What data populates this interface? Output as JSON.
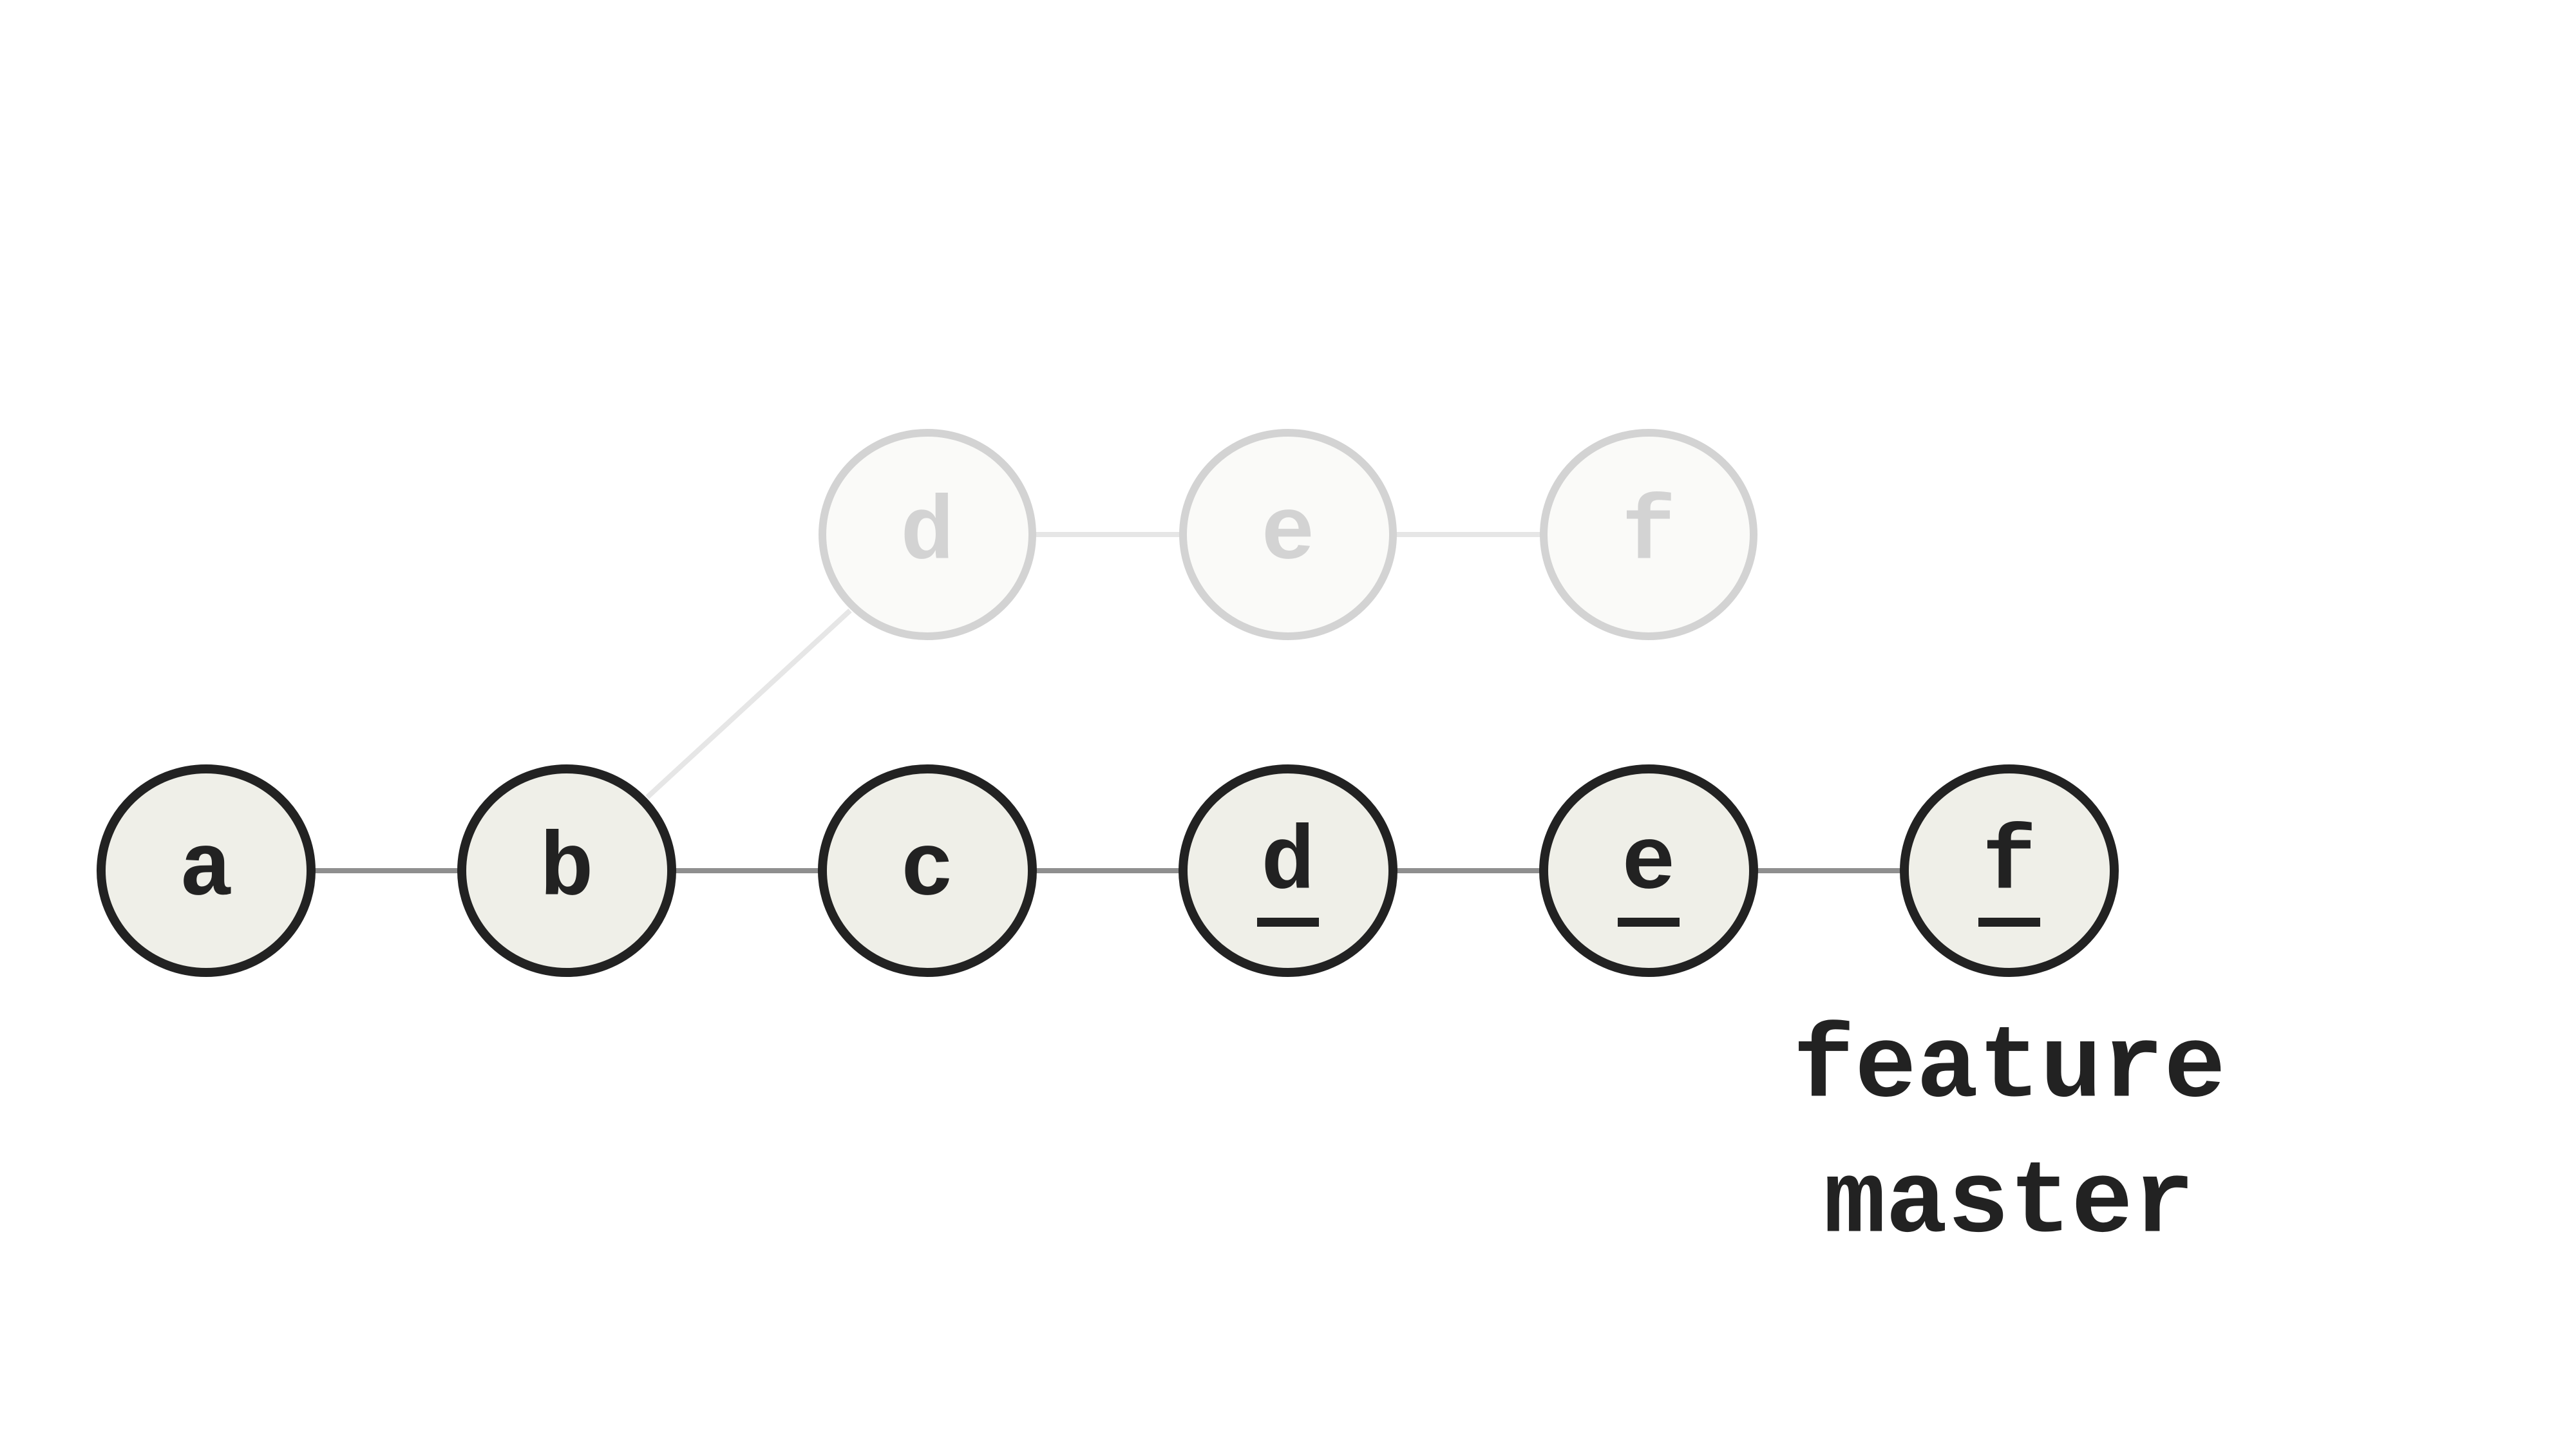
{
  "diagram": {
    "ghost_commits": [
      "d",
      "e",
      "f"
    ],
    "main_commits": [
      "a",
      "b",
      "c",
      "d",
      "e",
      "f"
    ],
    "underlined_commits": [
      "d",
      "e",
      "f"
    ],
    "branch_labels": [
      "feature",
      "master"
    ]
  },
  "colors": {
    "background": "#ffffff",
    "active_fill": "#efefe8",
    "active_stroke": "#222222",
    "active_text": "#222222",
    "active_edge": "#8f8f8f",
    "ghost_fill": "#fafaf8",
    "ghost_stroke": "#d3d3d3",
    "ghost_text": "#d3d3d3",
    "ghost_edge": "#e6e6e6"
  }
}
